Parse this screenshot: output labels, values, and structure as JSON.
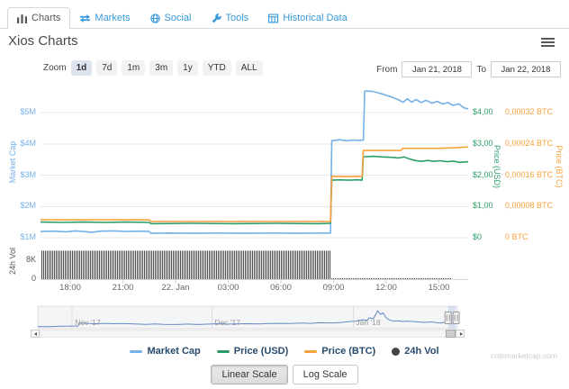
{
  "page": {
    "title": "Xios Charts",
    "watermark": "coinmarketcap.com"
  },
  "nav": {
    "tabs": [
      {
        "label": "Charts",
        "icon": "bar-chart-icon",
        "active": true
      },
      {
        "label": "Markets",
        "icon": "exchange-icon",
        "active": false
      },
      {
        "label": "Social",
        "icon": "globe-icon",
        "active": false
      },
      {
        "label": "Tools",
        "icon": "wrench-icon",
        "active": false
      },
      {
        "label": "Historical Data",
        "icon": "table-icon",
        "active": false
      }
    ]
  },
  "toolbar": {
    "zoom_label": "Zoom",
    "buttons": [
      "1d",
      "7d",
      "1m",
      "3m",
      "1y",
      "YTD",
      "ALL"
    ],
    "active_button": "1d",
    "from_label": "From",
    "from_value": "Jan 21, 2018",
    "to_label": "To",
    "to_value": "Jan 22, 2018"
  },
  "legend": [
    {
      "label": "Market Cap",
      "color": "#73b1e8",
      "marker": "line"
    },
    {
      "label": "Price (USD)",
      "color": "#2c9e68",
      "marker": "line"
    },
    {
      "label": "Price (BTC)",
      "color": "#f7a13a",
      "marker": "line"
    },
    {
      "label": "24h Vol",
      "color": "#434348",
      "marker": "dot"
    }
  ],
  "scale_buttons": {
    "linear": "Linear Scale",
    "log": "Log Scale",
    "active": "Linear Scale"
  },
  "chart_data": {
    "type": "line",
    "title": "Xios Charts",
    "legend_position": "bottom",
    "grid": true,
    "x_axis": {
      "tick_labels": [
        "18:00",
        "21:00",
        "22. Jan",
        "03:00",
        "06:00",
        "09:00",
        "12:00",
        "15:00"
      ],
      "range_from": "Jan 21, 2018",
      "range_to": "Jan 22, 2018"
    },
    "axes": {
      "market_cap": {
        "label": "Market Cap",
        "color": "#71b0e8",
        "ticks": [
          "$1M",
          "$2M",
          "$3M",
          "$4M",
          "$5M"
        ]
      },
      "price_usd": {
        "label": "Price (USD)",
        "color": "#2c9e68",
        "ticks": [
          "$0",
          "$1,00",
          "$2,00",
          "$3,00",
          "$4,00"
        ]
      },
      "price_btc": {
        "label": "Price (BTC)",
        "color": "#f7a13a",
        "ticks": [
          "0 BTC",
          "0,00008 BTC",
          "0,00016 BTC",
          "0,00024 BTC",
          "0,00032 BTC"
        ]
      },
      "volume": {
        "label": "24h Vol",
        "color": "#555555",
        "ticks": [
          {
            "label": "0",
            "k": 0
          },
          {
            "label": "8K",
            "k": 8
          }
        ]
      }
    },
    "series": [
      {
        "name": "Market Cap",
        "unit": "USD_millions",
        "color": "#73b1e8",
        "points": [
          [
            0,
            1.2
          ],
          [
            0.03,
            1.21
          ],
          [
            0.06,
            1.19
          ],
          [
            0.08,
            1.22
          ],
          [
            0.1,
            1.2
          ],
          [
            0.12,
            1.17
          ],
          [
            0.14,
            1.21
          ],
          [
            0.17,
            1.22
          ],
          [
            0.2,
            1.2
          ],
          [
            0.23,
            1.21
          ],
          [
            0.254,
            1.2
          ],
          [
            0.258,
            1.14
          ],
          [
            0.3,
            1.15
          ],
          [
            0.36,
            1.14
          ],
          [
            0.42,
            1.15
          ],
          [
            0.48,
            1.14
          ],
          [
            0.54,
            1.15
          ],
          [
            0.6,
            1.14
          ],
          [
            0.66,
            1.15
          ],
          [
            0.678,
            1.15
          ],
          [
            0.681,
            4.1
          ],
          [
            0.7,
            4.13
          ],
          [
            0.715,
            4.1
          ],
          [
            0.73,
            4.12
          ],
          [
            0.745,
            4.11
          ],
          [
            0.755,
            4.12
          ],
          [
            0.758,
            5.69
          ],
          [
            0.775,
            5.68
          ],
          [
            0.79,
            5.63
          ],
          [
            0.805,
            5.57
          ],
          [
            0.82,
            5.5
          ],
          [
            0.835,
            5.42
          ],
          [
            0.848,
            5.33
          ],
          [
            0.858,
            5.44
          ],
          [
            0.868,
            5.33
          ],
          [
            0.878,
            5.42
          ],
          [
            0.89,
            5.32
          ],
          [
            0.902,
            5.39
          ],
          [
            0.915,
            5.3
          ],
          [
            0.928,
            5.36
          ],
          [
            0.94,
            5.27
          ],
          [
            0.952,
            5.32
          ],
          [
            0.965,
            5.23
          ],
          [
            0.978,
            5.28
          ],
          [
            0.99,
            5.15
          ],
          [
            1,
            5.12
          ]
        ]
      },
      {
        "name": "Price (USD)",
        "unit": "USD",
        "color": "#2c9e68",
        "points": [
          [
            0,
            0.5
          ],
          [
            0.05,
            0.49
          ],
          [
            0.1,
            0.5
          ],
          [
            0.15,
            0.49
          ],
          [
            0.2,
            0.5
          ],
          [
            0.254,
            0.49
          ],
          [
            0.258,
            0.45
          ],
          [
            0.35,
            0.46
          ],
          [
            0.45,
            0.45
          ],
          [
            0.55,
            0.46
          ],
          [
            0.65,
            0.45
          ],
          [
            0.678,
            0.46
          ],
          [
            0.681,
            1.84
          ],
          [
            0.7,
            1.85
          ],
          [
            0.72,
            1.84
          ],
          [
            0.74,
            1.85
          ],
          [
            0.752,
            1.84
          ],
          [
            0.755,
            2.59
          ],
          [
            0.78,
            2.6
          ],
          [
            0.8,
            2.58
          ],
          [
            0.82,
            2.57
          ],
          [
            0.838,
            2.55
          ],
          [
            0.85,
            2.58
          ],
          [
            0.862,
            2.52
          ],
          [
            0.875,
            2.47
          ],
          [
            0.89,
            2.44
          ],
          [
            0.905,
            2.47
          ],
          [
            0.92,
            2.44
          ],
          [
            0.935,
            2.46
          ],
          [
            0.95,
            2.43
          ],
          [
            0.965,
            2.45
          ],
          [
            0.98,
            2.41
          ],
          [
            1,
            2.43
          ]
        ]
      },
      {
        "name": "Price (BTC)",
        "unit": "BTC",
        "color": "#f7a13a",
        "points": [
          [
            0,
            4.6e-05
          ],
          [
            0.08,
            4.55e-05
          ],
          [
            0.16,
            4.6e-05
          ],
          [
            0.254,
            4.55e-05
          ],
          [
            0.258,
            4.15e-05
          ],
          [
            0.4,
            4.15e-05
          ],
          [
            0.55,
            4.15e-05
          ],
          [
            0.678,
            4.15e-05
          ],
          [
            0.681,
            0.000157
          ],
          [
            0.72,
            0.000156
          ],
          [
            0.752,
            0.000157
          ],
          [
            0.755,
            0.000223
          ],
          [
            0.8,
            0.000223
          ],
          [
            0.843,
            0.000223
          ],
          [
            0.847,
            0.0002285
          ],
          [
            0.93,
            0.0002285
          ],
          [
            0.97,
            0.00023
          ],
          [
            1,
            0.000232
          ]
        ]
      }
    ],
    "volume_bars": {
      "name": "24h Vol",
      "color": "#4f4f4f",
      "segments": [
        {
          "x0": 0,
          "x1": 0.68,
          "value_k": 11.5
        },
        {
          "x0": 0.68,
          "x1": 0.96,
          "value_k": 0.4
        }
      ]
    },
    "navigator": {
      "month_ticks": [
        {
          "label": "Nov '17",
          "fx": 0.082
        },
        {
          "label": "Dec '17",
          "fx": 0.415
        },
        {
          "label": "Jan '18",
          "fx": 0.752
        }
      ],
      "selected_range_fx": [
        0.978,
        0.997
      ],
      "line_color": "#5b84c4",
      "points": [
        [
          0,
          0.1
        ],
        [
          0.03,
          0.1
        ],
        [
          0.05,
          0.12
        ],
        [
          0.08,
          0.13
        ],
        [
          0.095,
          0.13
        ],
        [
          0.1,
          0.28
        ],
        [
          0.12,
          0.26
        ],
        [
          0.14,
          0.25
        ],
        [
          0.16,
          0.27
        ],
        [
          0.18,
          0.25
        ],
        [
          0.2,
          0.26
        ],
        [
          0.23,
          0.24
        ],
        [
          0.26,
          0.22
        ],
        [
          0.28,
          0.24
        ],
        [
          0.3,
          0.22
        ],
        [
          0.33,
          0.21
        ],
        [
          0.36,
          0.23
        ],
        [
          0.38,
          0.21
        ],
        [
          0.41,
          0.23
        ],
        [
          0.43,
          0.25
        ],
        [
          0.45,
          0.23
        ],
        [
          0.47,
          0.24
        ],
        [
          0.5,
          0.25
        ],
        [
          0.53,
          0.24
        ],
        [
          0.55,
          0.26
        ],
        [
          0.58,
          0.27
        ],
        [
          0.6,
          0.26
        ],
        [
          0.63,
          0.28
        ],
        [
          0.65,
          0.27
        ],
        [
          0.67,
          0.3
        ],
        [
          0.7,
          0.29
        ],
        [
          0.72,
          0.31
        ],
        [
          0.74,
          0.35
        ],
        [
          0.76,
          0.38
        ],
        [
          0.775,
          0.45
        ],
        [
          0.785,
          0.42
        ],
        [
          0.79,
          0.55
        ],
        [
          0.8,
          0.5
        ],
        [
          0.81,
          0.9
        ],
        [
          0.817,
          0.72
        ],
        [
          0.823,
          0.8
        ],
        [
          0.83,
          0.55
        ],
        [
          0.84,
          0.42
        ],
        [
          0.85,
          0.38
        ],
        [
          0.86,
          0.4
        ],
        [
          0.87,
          0.36
        ],
        [
          0.88,
          0.38
        ],
        [
          0.9,
          0.35
        ],
        [
          0.92,
          0.32
        ],
        [
          0.94,
          0.34
        ],
        [
          0.95,
          0.3
        ],
        [
          0.96,
          0.28
        ],
        [
          0.97,
          0.32
        ],
        [
          0.98,
          0.25
        ],
        [
          0.99,
          0.23
        ],
        [
          1,
          0.35
        ]
      ]
    }
  }
}
